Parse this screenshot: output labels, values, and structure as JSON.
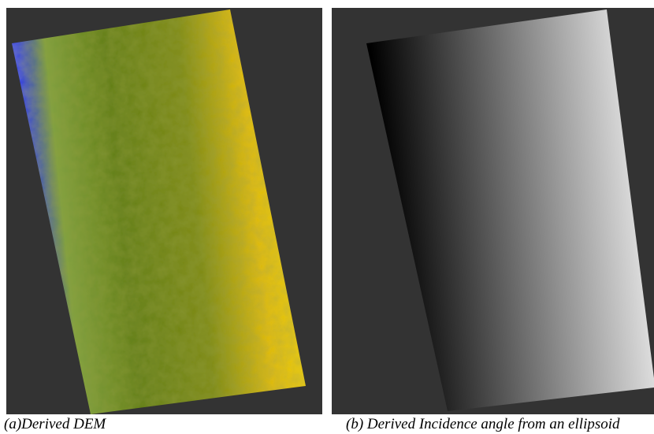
{
  "panels": [
    {
      "caption": "(a)Derived DEM"
    },
    {
      "caption": "(b) Derived Incidence angle from an ellipsoid"
    }
  ]
}
